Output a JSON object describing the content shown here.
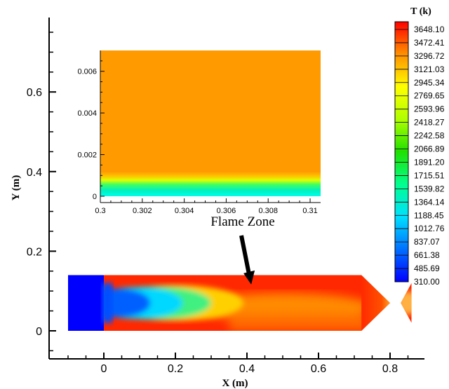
{
  "chart_data": {
    "type": "heatmap",
    "title": "",
    "xlabel": "X (m)",
    "ylabel": "Y (m)",
    "xlim": [
      -0.14,
      0.9
    ],
    "ylim": [
      -0.09,
      0.78
    ],
    "x_ticks": [
      "0",
      "0.2",
      "0.4",
      "0.6",
      "0.8"
    ],
    "y_ticks": [
      "0",
      "0.2",
      "0.4",
      "0.6"
    ],
    "x_tick_values": [
      0,
      0.2,
      0.4,
      0.6,
      0.8
    ],
    "y_tick_values": [
      0,
      0.2,
      0.4,
      0.6
    ],
    "colorbar": {
      "title": "T (k)",
      "levels": [
        "310.00",
        "485.69",
        "661.38",
        "837.07",
        "1012.76",
        "1188.45",
        "1364.14",
        "1539.82",
        "1715.51",
        "1891.20",
        "2066.89",
        "2242.58",
        "2418.27",
        "2593.96",
        "2769.65",
        "2945.34",
        "3121.03",
        "3296.72",
        "3472.41",
        "3648.10"
      ],
      "min": 310.0,
      "max": 3750.0
    },
    "domain_outline": [
      [
        -0.1,
        0
      ],
      [
        -0.1,
        0.14
      ],
      [
        0.72,
        0.14
      ],
      [
        0.8,
        0.07
      ],
      [
        0.83,
        0.07
      ],
      [
        0.86,
        0.12
      ],
      [
        0.86,
        0.02
      ],
      [
        0.83,
        0.07
      ],
      [
        0.8,
        0.07
      ],
      [
        0.72,
        0
      ],
      [
        -0.1,
        0
      ]
    ],
    "annotation": {
      "text": "Flame Zone",
      "target": [
        0.41,
        0.12
      ]
    },
    "inset": {
      "xlim": [
        0.3,
        0.3105
      ],
      "ylim": [
        -0.0005,
        0.007
      ],
      "x_ticks": [
        "0.3",
        "0.302",
        "0.304",
        "0.306",
        "0.308",
        "0.31"
      ],
      "y_ticks": [
        "0",
        "0.002",
        "0.004",
        "0.006"
      ],
      "x_tick_values": [
        0.3,
        0.302,
        0.304,
        0.306,
        0.308,
        0.31
      ],
      "y_tick_values": [
        0,
        0.002,
        0.004,
        0.006
      ],
      "profile": [
        [
          0,
          1150
        ],
        [
          0.0003,
          1400
        ],
        [
          0.0006,
          1800
        ],
        [
          0.0009,
          2500
        ],
        [
          0.0012,
          3300
        ],
        [
          0.0015,
          3450
        ],
        [
          0.007,
          3450
        ]
      ]
    }
  }
}
